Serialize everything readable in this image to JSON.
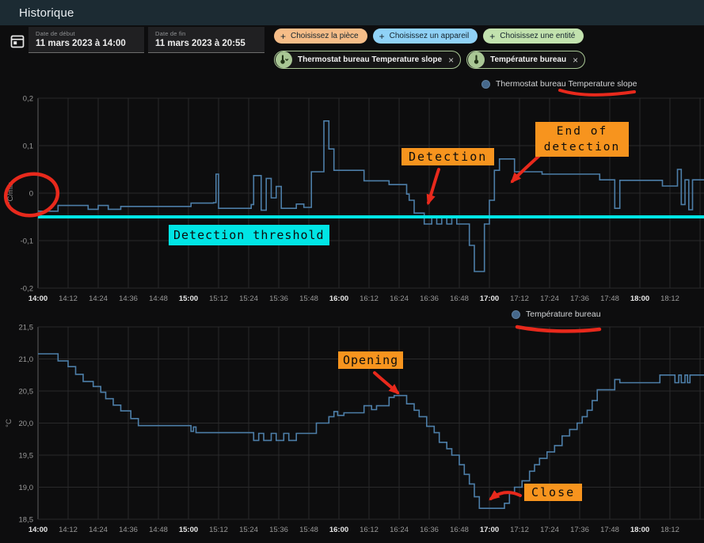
{
  "header": {
    "title": "Historique"
  },
  "toolbar": {
    "date_start": {
      "label": "Date de début",
      "value": "11 mars 2023 à 14:00"
    },
    "date_end": {
      "label": "Date de fin",
      "value": "11 mars 2023 à 20:55"
    },
    "picker_chips": [
      {
        "label": "Choisissez la pièce",
        "color": "#f6bd88"
      },
      {
        "label": "Choisissez un appareil",
        "color": "#90d2f7"
      },
      {
        "label": "Choisissez une entité",
        "color": "#c2e2ae"
      }
    ],
    "entity_chips": [
      {
        "label": "Thermostat bureau Temperature slope",
        "close": "×"
      },
      {
        "label": "Température bureau",
        "close": "×"
      }
    ]
  },
  "chart_data": [
    {
      "type": "line",
      "step": "after",
      "title": "Thermostat bureau Temperature slope",
      "ylabel": "°C/min",
      "line_color": "#4d7ea8",
      "legend_marker_color": "#46688b",
      "grid": true,
      "legend_position": "top-right",
      "x_start": "14:00",
      "x_tick_interval_minutes": 12,
      "xlim_minutes": [
        0,
        266
      ],
      "x_ticks": [
        "14:00",
        "14:12",
        "14:24",
        "14:36",
        "14:48",
        "15:00",
        "15:12",
        "15:24",
        "15:36",
        "15:48",
        "16:00",
        "16:12",
        "16:24",
        "16:36",
        "16:48",
        "17:00",
        "17:12",
        "17:24",
        "17:36",
        "17:48",
        "18:00",
        "18:12"
      ],
      "ylim": [
        -0.2,
        0.2
      ],
      "y_ticks": [
        {
          "v": 0.2,
          "label": "0,2"
        },
        {
          "v": 0.1,
          "label": "0,1"
        },
        {
          "v": 0,
          "label": "0"
        },
        {
          "v": -0.1,
          "label": "-0,1"
        },
        {
          "v": -0.2,
          "label": "-0,2"
        }
      ],
      "threshold": {
        "value": -0.05,
        "color": "#00e5e5",
        "label": "Detection threshold"
      },
      "points": [
        [
          0,
          -0.038
        ],
        [
          8,
          -0.026
        ],
        [
          20,
          -0.034
        ],
        [
          24,
          -0.026
        ],
        [
          28,
          -0.034
        ],
        [
          33,
          -0.028
        ],
        [
          61,
          -0.021
        ],
        [
          70,
          -0.02
        ],
        [
          71,
          0.04
        ],
        [
          72,
          -0.032
        ],
        [
          85,
          -0.024
        ],
        [
          86,
          0.037
        ],
        [
          89,
          -0.036
        ],
        [
          91,
          0.031
        ],
        [
          93,
          -0.01
        ],
        [
          95,
          0.014
        ],
        [
          97,
          -0.032
        ],
        [
          103,
          -0.023
        ],
        [
          106,
          -0.03
        ],
        [
          109,
          0.045
        ],
        [
          114,
          0.152
        ],
        [
          116,
          0.093
        ],
        [
          118,
          0.048
        ],
        [
          130,
          0.026
        ],
        [
          140,
          0.018
        ],
        [
          147,
          -0.002
        ],
        [
          148,
          -0.015
        ],
        [
          150,
          -0.042
        ],
        [
          154,
          -0.065
        ],
        [
          157,
          -0.05
        ],
        [
          159,
          -0.065
        ],
        [
          161,
          -0.05
        ],
        [
          163,
          -0.065
        ],
        [
          165,
          -0.05
        ],
        [
          167,
          -0.065
        ],
        [
          172,
          -0.11
        ],
        [
          174,
          -0.165
        ],
        [
          178,
          -0.065
        ],
        [
          180,
          -0.015
        ],
        [
          182,
          0.048
        ],
        [
          184,
          0.072
        ],
        [
          190,
          0.045
        ],
        [
          201,
          0.04
        ],
        [
          224,
          0.028
        ],
        [
          230,
          -0.032
        ],
        [
          232,
          0.027
        ],
        [
          249,
          0.015
        ],
        [
          255,
          0.05
        ],
        [
          256.5,
          -0.024
        ],
        [
          258,
          0.028
        ],
        [
          259.5,
          -0.035
        ],
        [
          261,
          0.028
        ]
      ]
    },
    {
      "type": "line",
      "step": "after",
      "title": "Température bureau",
      "ylabel": "°C",
      "line_color": "#4d7ea8",
      "legend_marker_color": "#46688b",
      "grid": true,
      "legend_position": "top-right",
      "x_start": "14:00",
      "x_tick_interval_minutes": 12,
      "xlim_minutes": [
        0,
        266
      ],
      "x_ticks": [
        "14:00",
        "14:12",
        "14:24",
        "14:36",
        "14:48",
        "15:00",
        "15:12",
        "15:24",
        "15:36",
        "15:48",
        "16:00",
        "16:12",
        "16:24",
        "16:36",
        "16:48",
        "17:00",
        "17:12",
        "17:24",
        "17:36",
        "17:48",
        "18:00",
        "18:12"
      ],
      "ylim": [
        18.5,
        21.5
      ],
      "y_ticks": [
        {
          "v": 21.5,
          "label": "21,5"
        },
        {
          "v": 21.0,
          "label": "21,0"
        },
        {
          "v": 20.5,
          "label": "20,5"
        },
        {
          "v": 20.0,
          "label": "20,0"
        },
        {
          "v": 19.5,
          "label": "19,5"
        },
        {
          "v": 19.0,
          "label": "19,0"
        },
        {
          "v": 18.5,
          "label": "18,5"
        }
      ],
      "points": [
        [
          0,
          21.08
        ],
        [
          8,
          20.97
        ],
        [
          12,
          20.88
        ],
        [
          15,
          20.76
        ],
        [
          18,
          20.65
        ],
        [
          22,
          20.57
        ],
        [
          25,
          20.48
        ],
        [
          27,
          20.38
        ],
        [
          30,
          20.28
        ],
        [
          33,
          20.19
        ],
        [
          37,
          20.07
        ],
        [
          40,
          19.96
        ],
        [
          61,
          19.87
        ],
        [
          62,
          19.94
        ],
        [
          63,
          19.85
        ],
        [
          86,
          19.73
        ],
        [
          88,
          19.84
        ],
        [
          90,
          19.73
        ],
        [
          93,
          19.84
        ],
        [
          95,
          19.73
        ],
        [
          98,
          19.84
        ],
        [
          100,
          19.73
        ],
        [
          103,
          19.84
        ],
        [
          111,
          20.0
        ],
        [
          116,
          20.1
        ],
        [
          118,
          20.18
        ],
        [
          119.5,
          20.12
        ],
        [
          122,
          20.16
        ],
        [
          130,
          20.27
        ],
        [
          133,
          20.21
        ],
        [
          135,
          20.27
        ],
        [
          140,
          20.4
        ],
        [
          142,
          20.43
        ],
        [
          147,
          20.3
        ],
        [
          150,
          20.2
        ],
        [
          152,
          20.1
        ],
        [
          155,
          19.95
        ],
        [
          158,
          19.85
        ],
        [
          160,
          19.7
        ],
        [
          163,
          19.6
        ],
        [
          165,
          19.5
        ],
        [
          168,
          19.35
        ],
        [
          170,
          19.2
        ],
        [
          172,
          19.05
        ],
        [
          174,
          18.85
        ],
        [
          176,
          18.67
        ],
        [
          186,
          18.75
        ],
        [
          188,
          18.9
        ],
        [
          190,
          19.0
        ],
        [
          193,
          19.1
        ],
        [
          196,
          19.25
        ],
        [
          198,
          19.35
        ],
        [
          200,
          19.45
        ],
        [
          203,
          19.55
        ],
        [
          206,
          19.65
        ],
        [
          209,
          19.8
        ],
        [
          212,
          19.9
        ],
        [
          215,
          20.0
        ],
        [
          217,
          20.1
        ],
        [
          219,
          20.2
        ],
        [
          221,
          20.35
        ],
        [
          223,
          20.52
        ],
        [
          230,
          20.68
        ],
        [
          232,
          20.63
        ],
        [
          248,
          20.75
        ],
        [
          254,
          20.63
        ],
        [
          255.5,
          20.75
        ],
        [
          256.5,
          20.63
        ],
        [
          258,
          20.75
        ],
        [
          259,
          20.63
        ],
        [
          260,
          20.75
        ]
      ]
    }
  ],
  "annotations": {
    "highlight_color": "#f7941e",
    "red_color": "#e8291c",
    "cyan_color": "#00e5e5",
    "detection": {
      "text": "Detection"
    },
    "end_of_detection": {
      "line1": "End of",
      "line2": "detection"
    },
    "opening": {
      "text": "Opening"
    },
    "close": {
      "text": "Close"
    },
    "detection_threshold": {
      "text": "Detection threshold"
    }
  }
}
